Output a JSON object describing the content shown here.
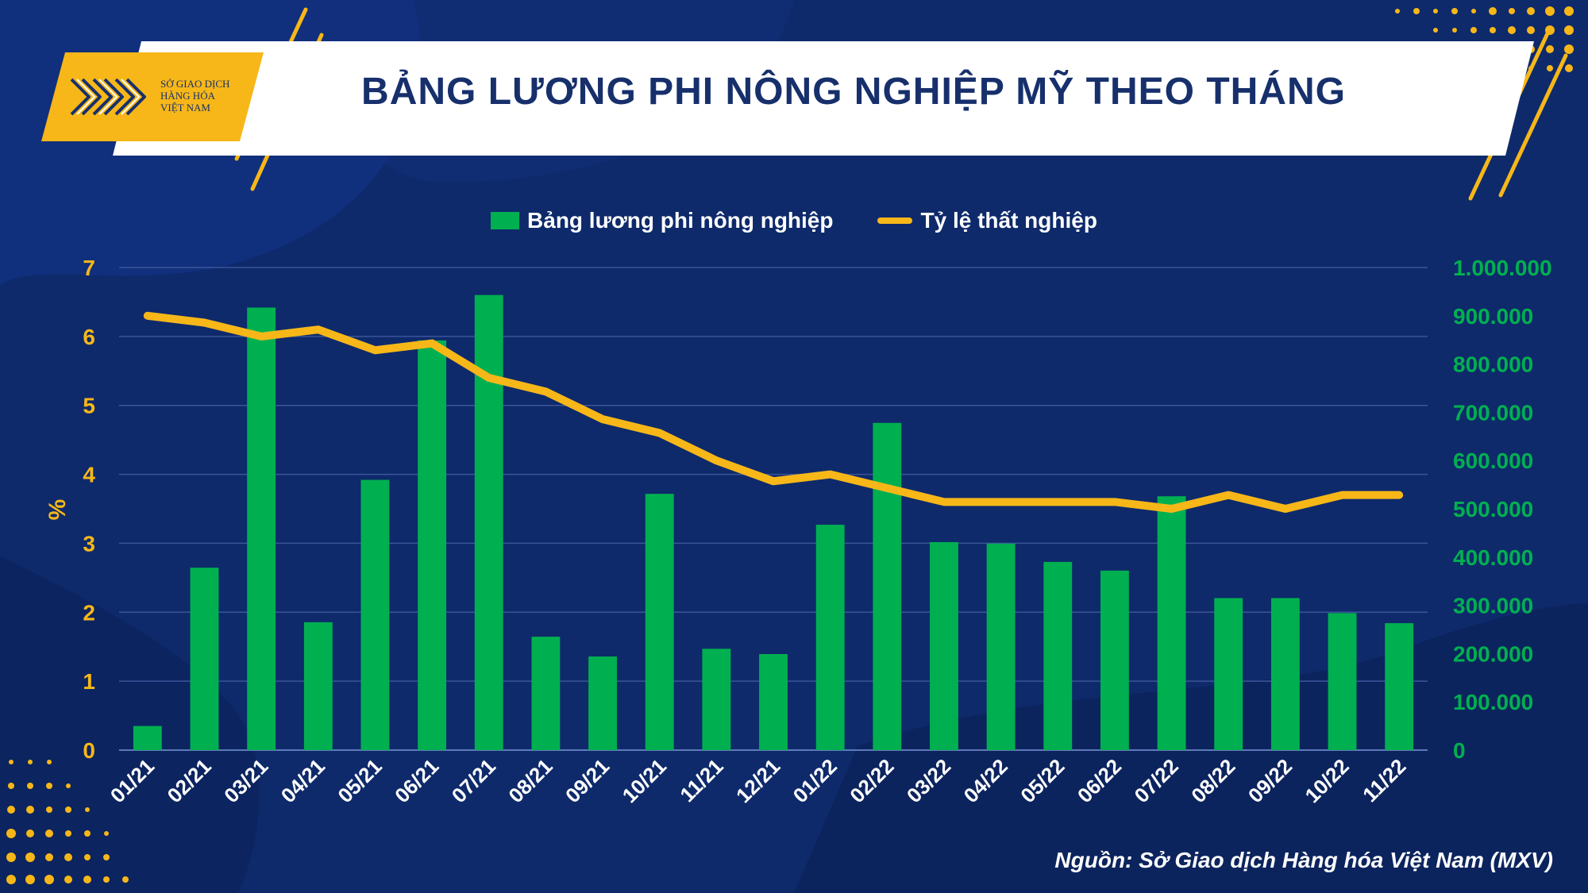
{
  "colors": {
    "background": "#0e2a6b",
    "accent_yellow": "#f7b718",
    "bar_green": "#00b050",
    "line_yellow": "#f7b718",
    "title_navy": "#17306c"
  },
  "logo": {
    "icon": "mxv-logo-icon",
    "line1": "SỞ GIAO DỊCH",
    "line2": "HÀNG HÓA",
    "line3": "VIỆT NAM"
  },
  "title": "BẢNG LƯƠNG PHI NÔNG NGHIỆP MỸ THEO THÁNG",
  "source": "Nguồn: Sở Giao dịch Hàng hóa Việt Nam (MXV)",
  "chart_data": {
    "type": "bar",
    "categories": [
      "01/21",
      "02/21",
      "03/21",
      "04/21",
      "05/21",
      "06/21",
      "07/21",
      "08/21",
      "09/21",
      "10/21",
      "11/21",
      "12/21",
      "01/22",
      "02/22",
      "03/22",
      "04/22",
      "05/22",
      "06/22",
      "07/22",
      "08/22",
      "09/22",
      "10/22",
      "11/22"
    ],
    "series": [
      {
        "name": "Bảng lương phi nông nghiệp",
        "type": "bar",
        "axis": "right",
        "values": [
          50000,
          378000,
          917000,
          265000,
          560000,
          849000,
          943000,
          235000,
          194000,
          531000,
          210000,
          199000,
          467000,
          678000,
          431000,
          428000,
          390000,
          372000,
          526000,
          315000,
          315000,
          284000,
          263000
        ]
      },
      {
        "name": "Tỷ lệ thất nghiệp",
        "type": "line",
        "axis": "left",
        "values": [
          6.3,
          6.2,
          6.0,
          6.1,
          5.8,
          5.9,
          5.4,
          5.2,
          4.8,
          4.6,
          4.2,
          3.9,
          4.0,
          3.8,
          3.6,
          3.6,
          3.6,
          3.6,
          3.5,
          3.7,
          3.5,
          3.7,
          3.7
        ]
      }
    ],
    "ylabel": "%",
    "ylim": [
      0,
      7
    ],
    "y_ticks": [
      "0",
      "1",
      "2",
      "3",
      "4",
      "5",
      "6",
      "7"
    ],
    "y2lim": [
      0,
      1000000
    ],
    "y2_ticks": [
      "0",
      "100.000",
      "200.000",
      "300.000",
      "400.000",
      "500.000",
      "600.000",
      "700.000",
      "800.000",
      "900.000",
      "1.000.000"
    ],
    "grid": true,
    "legend": "top-center"
  }
}
